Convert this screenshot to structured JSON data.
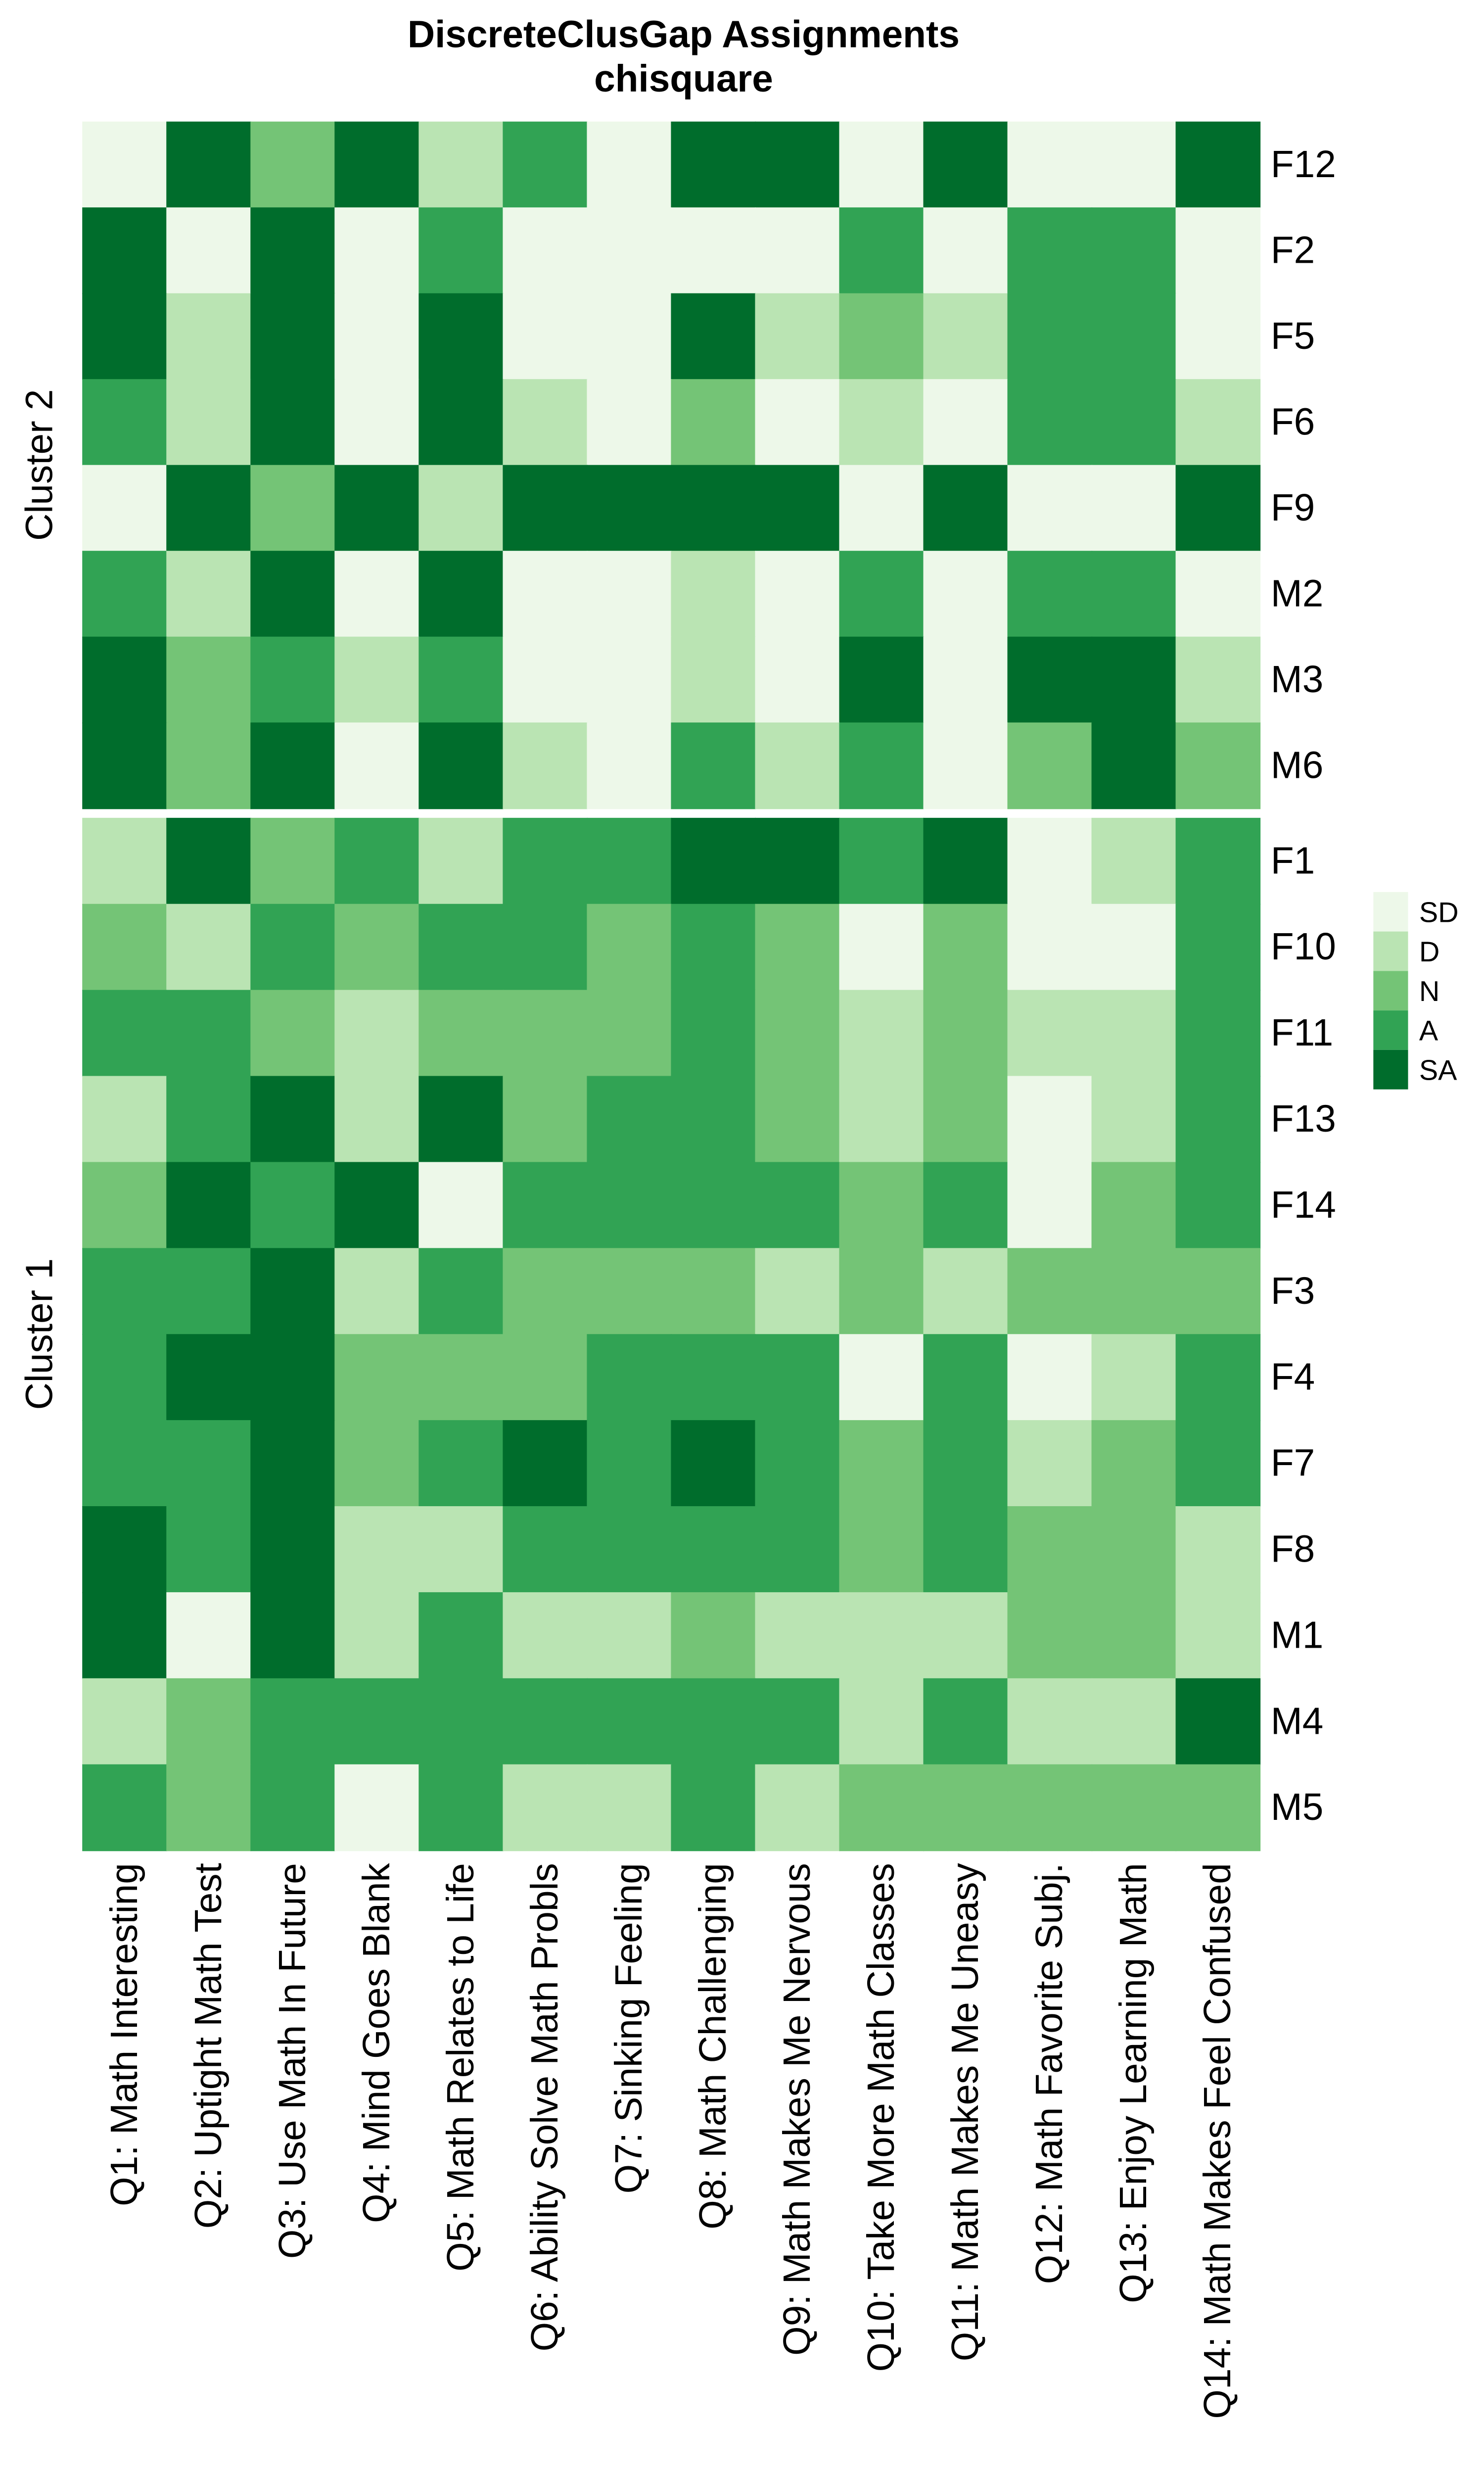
{
  "chart_data": {
    "type": "heatmap",
    "title": "DiscreteClusGap Assignments",
    "subtitle": "chisquare",
    "columns": [
      "Q1: Math Interesting",
      "Q2: Uptight Math Test",
      "Q3: Use Math In Future",
      "Q4: Mind Goes Blank",
      "Q5: Math Relates to Life",
      "Q6: Ability Solve Math Probls",
      "Q7: Sinking Feeling",
      "Q8: Math Challenging",
      "Q9: Math Makes Me Nervous",
      "Q10: Take More Math Classes",
      "Q11: Math Makes Me Uneasy",
      "Q12: Math Favorite Subj.",
      "Q13: Enjoy Learning Math",
      "Q14: Math Makes Feel Confused"
    ],
    "legend": {
      "position": "right",
      "levels": [
        "SD",
        "D",
        "N",
        "A",
        "SA"
      ],
      "colors": [
        "#EDF8E9",
        "#BAE4B3",
        "#74C476",
        "#31A354",
        "#006D2C"
      ]
    },
    "clusters": [
      {
        "name": "Cluster 2",
        "rows": [
          {
            "label": "F12",
            "values": [
              "SD",
              "SA",
              "N",
              "SA",
              "D",
              "A",
              "SD",
              "SA",
              "SA",
              "SD",
              "SA",
              "SD",
              "SD",
              "SA"
            ]
          },
          {
            "label": "F2",
            "values": [
              "SA",
              "SD",
              "SA",
              "SD",
              "A",
              "SD",
              "SD",
              "SD",
              "SD",
              "A",
              "SD",
              "A",
              "A",
              "SD"
            ]
          },
          {
            "label": "F5",
            "values": [
              "SA",
              "D",
              "SA",
              "SD",
              "SA",
              "SD",
              "SD",
              "SA",
              "D",
              "N",
              "D",
              "A",
              "A",
              "SD"
            ]
          },
          {
            "label": "F6",
            "values": [
              "A",
              "D",
              "SA",
              "SD",
              "SA",
              "D",
              "SD",
              "N",
              "SD",
              "D",
              "SD",
              "A",
              "A",
              "D"
            ]
          },
          {
            "label": "F9",
            "values": [
              "SD",
              "SA",
              "N",
              "SA",
              "D",
              "SA",
              "SA",
              "SA",
              "SA",
              "SD",
              "SA",
              "SD",
              "SD",
              "SA"
            ]
          },
          {
            "label": "M2",
            "values": [
              "A",
              "D",
              "SA",
              "SD",
              "SA",
              "SD",
              "SD",
              "D",
              "SD",
              "A",
              "SD",
              "A",
              "A",
              "SD"
            ]
          },
          {
            "label": "M3",
            "values": [
              "SA",
              "N",
              "A",
              "D",
              "A",
              "SD",
              "SD",
              "D",
              "SD",
              "SA",
              "SD",
              "SA",
              "SA",
              "D"
            ]
          },
          {
            "label": "M6",
            "values": [
              "SA",
              "N",
              "SA",
              "SD",
              "SA",
              "D",
              "SD",
              "A",
              "D",
              "A",
              "SD",
              "N",
              "SA",
              "N"
            ]
          }
        ]
      },
      {
        "name": "Cluster 1",
        "rows": [
          {
            "label": "F1",
            "values": [
              "D",
              "SA",
              "N",
              "A",
              "D",
              "A",
              "A",
              "SA",
              "SA",
              "A",
              "SA",
              "SD",
              "D",
              "A"
            ]
          },
          {
            "label": "F10",
            "values": [
              "N",
              "D",
              "A",
              "N",
              "A",
              "A",
              "N",
              "A",
              "N",
              "SD",
              "N",
              "SD",
              "SD",
              "A"
            ]
          },
          {
            "label": "F11",
            "values": [
              "A",
              "A",
              "N",
              "D",
              "N",
              "N",
              "N",
              "A",
              "N",
              "D",
              "N",
              "D",
              "D",
              "A"
            ]
          },
          {
            "label": "F13",
            "values": [
              "D",
              "A",
              "SA",
              "D",
              "SA",
              "N",
              "A",
              "A",
              "N",
              "D",
              "N",
              "SD",
              "D",
              "A"
            ]
          },
          {
            "label": "F14",
            "values": [
              "N",
              "SA",
              "A",
              "SA",
              "SD",
              "A",
              "A",
              "A",
              "A",
              "N",
              "A",
              "SD",
              "N",
              "A"
            ]
          },
          {
            "label": "F3",
            "values": [
              "A",
              "A",
              "SA",
              "D",
              "A",
              "N",
              "N",
              "N",
              "D",
              "N",
              "D",
              "N",
              "N",
              "N"
            ]
          },
          {
            "label": "F4",
            "values": [
              "A",
              "SA",
              "SA",
              "N",
              "N",
              "N",
              "A",
              "A",
              "A",
              "SD",
              "A",
              "SD",
              "D",
              "A"
            ]
          },
          {
            "label": "F7",
            "values": [
              "A",
              "A",
              "SA",
              "N",
              "A",
              "SA",
              "A",
              "SA",
              "A",
              "N",
              "A",
              "D",
              "N",
              "A"
            ]
          },
          {
            "label": "F8",
            "values": [
              "SA",
              "A",
              "SA",
              "D",
              "D",
              "A",
              "A",
              "A",
              "A",
              "N",
              "A",
              "N",
              "N",
              "D"
            ]
          },
          {
            "label": "M1",
            "values": [
              "SA",
              "SD",
              "SA",
              "D",
              "A",
              "D",
              "D",
              "N",
              "D",
              "D",
              "D",
              "N",
              "N",
              "D"
            ]
          },
          {
            "label": "M4",
            "values": [
              "D",
              "N",
              "A",
              "A",
              "A",
              "A",
              "A",
              "A",
              "A",
              "D",
              "A",
              "D",
              "D",
              "SA"
            ]
          },
          {
            "label": "M5",
            "values": [
              "A",
              "N",
              "A",
              "SD",
              "A",
              "D",
              "D",
              "A",
              "D",
              "N",
              "N",
              "N",
              "N",
              "N"
            ]
          }
        ]
      }
    ]
  }
}
